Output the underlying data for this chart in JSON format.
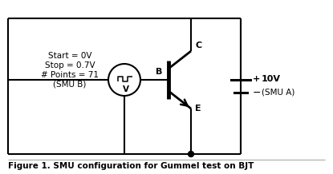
{
  "fig_width": 4.15,
  "fig_height": 2.18,
  "dpi": 100,
  "background_color": "#ffffff",
  "line_color": "#000000",
  "caption": "Figure 1. SMU configuration for Gummel test on BJT",
  "caption_fontsize": 7.5,
  "label_fontsize": 8,
  "annotation_fontsize": 7.5,
  "smu_b_text": [
    "Start = 0V",
    "Stop = 0.7V",
    "# Points = 71",
    "(SMU B)"
  ],
  "smu_a_voltage": "10V",
  "smu_a_label": "(SMU A)",
  "node_B": "B",
  "node_C": "C",
  "node_E": "E",
  "plus": "+",
  "minus": "−"
}
